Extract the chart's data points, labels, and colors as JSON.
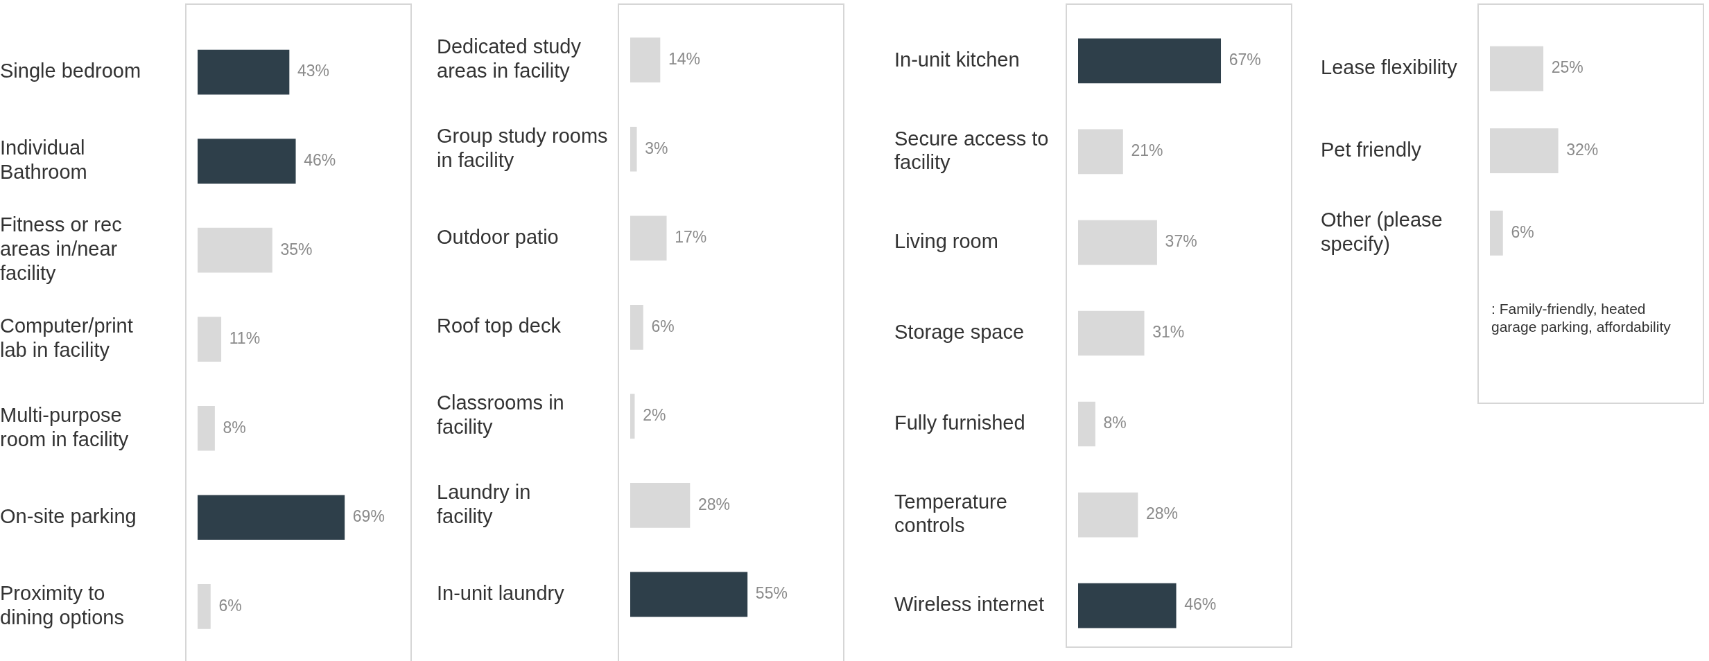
{
  "chart_data": [
    {
      "type": "bar",
      "orientation": "horizontal",
      "categories": [
        "Single bedroom",
        "Individual Bathroom",
        "Fitness or rec areas in/near facility",
        "Computer/print lab in facility",
        "Multi-purpose room in facility",
        "On-site parking",
        "Proximity to dining options"
      ],
      "values": [
        43,
        46,
        35,
        11,
        8,
        69,
        6
      ],
      "colors": [
        "#2e3f4a",
        "#2e3f4a",
        "#d9d9d9",
        "#d9d9d9",
        "#d9d9d9",
        "#2e3f4a",
        "#d9d9d9"
      ],
      "value_labels": [
        "43%",
        "46%",
        "35%",
        "11%",
        "8%",
        "69%",
        "6%"
      ],
      "xlim": [
        0,
        100
      ],
      "tick_labels": "y"
    },
    {
      "type": "bar",
      "orientation": "horizontal",
      "categories": [
        "Dedicated study areas in facility",
        "Group study rooms in facility",
        "Outdoor patio",
        "Roof top deck",
        "Classrooms in facility",
        "Laundry in facility",
        "In-unit laundry"
      ],
      "values": [
        14,
        3,
        17,
        6,
        2,
        28,
        55
      ],
      "colors": [
        "#d9d9d9",
        "#d9d9d9",
        "#d9d9d9",
        "#d9d9d9",
        "#d9d9d9",
        "#d9d9d9",
        "#2e3f4a"
      ],
      "value_labels": [
        "14%",
        "3%",
        "17%",
        "6%",
        "2%",
        "28%",
        "55%"
      ],
      "xlim": [
        0,
        100
      ],
      "tick_labels": "y"
    },
    {
      "type": "bar",
      "orientation": "horizontal",
      "categories": [
        "In-unit kitchen",
        "Secure access to facility",
        "Living room",
        "Storage space",
        "Fully furnished",
        "Temperature controls",
        "Wireless internet"
      ],
      "values": [
        67,
        21,
        37,
        31,
        8,
        28,
        46
      ],
      "colors": [
        "#2e3f4a",
        "#d9d9d9",
        "#d9d9d9",
        "#d9d9d9",
        "#d9d9d9",
        "#d9d9d9",
        "#2e3f4a"
      ],
      "value_labels": [
        "67%",
        "21%",
        "37%",
        "31%",
        "8%",
        "28%",
        "46%"
      ],
      "xlim": [
        0,
        100
      ],
      "tick_labels": "y"
    },
    {
      "type": "bar",
      "orientation": "horizontal",
      "categories": [
        "Lease flexibility",
        "Pet friendly",
        "Other (please specify)"
      ],
      "values": [
        25,
        32,
        6
      ],
      "colors": [
        "#d9d9d9",
        "#d9d9d9",
        "#d9d9d9"
      ],
      "value_labels": [
        "25%",
        "32%",
        "6%"
      ],
      "xlim": [
        0,
        100
      ],
      "tick_labels": "y",
      "annotations": [
        ": Family-friendly, heated garage parking, affordability"
      ]
    }
  ]
}
